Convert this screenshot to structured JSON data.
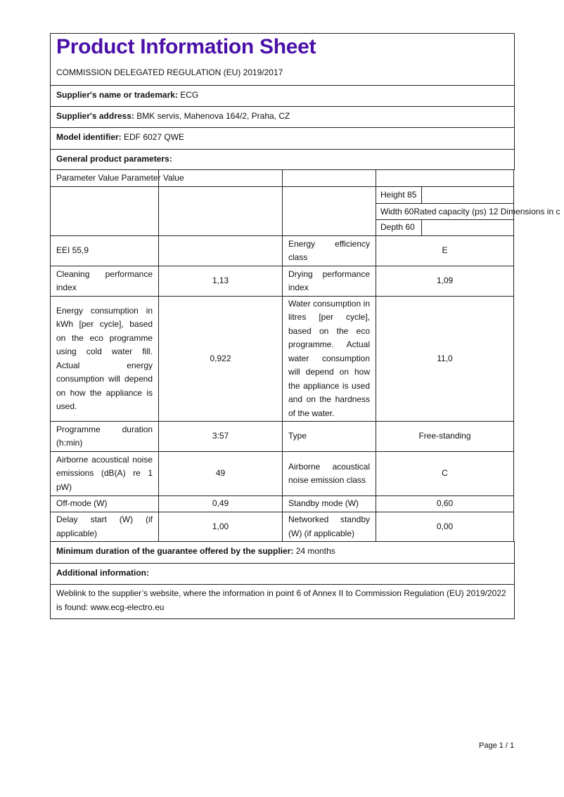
{
  "title": "Product Information Sheet",
  "regulation": "COMMISSION DELEGATED REGULATION (EU) 2019/2017",
  "supplier_name": {
    "label": "Supplier's name or trademark:",
    "value": "ECG"
  },
  "supplier_address": {
    "label": "Supplier's address:",
    "value": "BMK servis, Mahenova 164/2, Praha, CZ"
  },
  "model": {
    "label": "Model identifier:",
    "value": "EDF 6027 QWE"
  },
  "general": "General product parameters:",
  "table": {
    "header": "Parameter Value Parameter Value",
    "height": "Height 85",
    "width": "Width 60",
    "overflow": "Rated capacity (ps) 12 Dimensions in c",
    "depth": "Depth 60",
    "rows": [
      {
        "p1": "EEI 55,9",
        "v1": "",
        "p2": "Energy efficiency class",
        "v2": "E"
      },
      {
        "p1": "Cleaning performance index",
        "v1": "1,13",
        "p2": "Drying performance index",
        "v2": "1,09"
      },
      {
        "p1": "Energy consumption in kWh [per cycle], based on the eco programme using cold water fill. Actual energy consumption will depend on how the appliance is used.",
        "v1": "0,922",
        "p2": "Water consumption in litres [per cycle], based on the eco programme. Actual water consumption will depend on how the appliance is used and on the hardness of the water.",
        "v2": "11,0"
      },
      {
        "p1": "Programme duration (h:min)",
        "v1": "3:57",
        "p2": "Type",
        "v2": "Free-standing"
      },
      {
        "p1": "Airborne acoustical noise emissions (dB(A) re 1 pW)",
        "v1": "49",
        "p2": "Airborne acoustical noise emission class",
        "v2": "C"
      },
      {
        "p1": "Off-mode (W)",
        "v1": "0,49",
        "p2": "Standby mode (W)",
        "v2": "0,60"
      },
      {
        "p1": "Delay start (W) (if applicable)",
        "v1": "1,00",
        "p2": "Networked standby (W) (if applicable)",
        "v2": "0,00"
      }
    ]
  },
  "guarantee": {
    "label": "Minimum duration of the guarantee offered by the supplier:",
    "value": "24 months"
  },
  "additional": "Additional information:",
  "weblink": "Weblink to the supplier’s website, where the information in point 6 of Annex II to Commission Regulation (EU) 2019/2022 is found: www.ecg-electro.eu",
  "page": "Page 1 / 1"
}
